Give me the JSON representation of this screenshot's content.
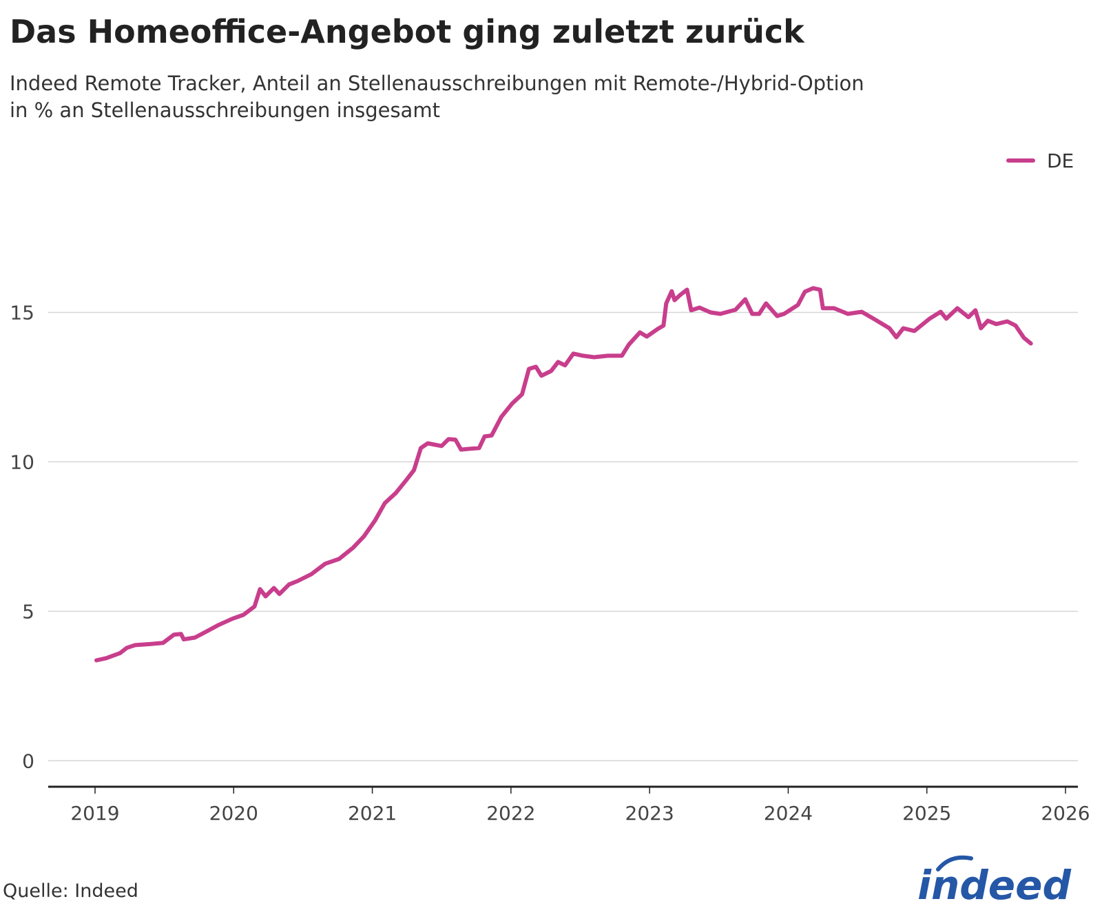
{
  "chart_data": {
    "type": "line",
    "title": "Das Homeoffice-Angebot ging zuletzt zurück",
    "subtitle": [
      "Indeed Remote Tracker, Anteil an Stellenausschreibungen mit Remote-/Hybrid-Option",
      "in % an Stellenausschreibungen insgesamt"
    ],
    "source": "Quelle: Indeed",
    "logo": "indeed",
    "legend": "top-right",
    "grid": true,
    "xlim": [
      2019,
      2026
    ],
    "xticks": [
      2019,
      2020,
      2021,
      2022,
      2023,
      2024,
      2025,
      2026
    ],
    "ylim": [
      -0.87,
      17.5
    ],
    "yticks": [
      0,
      5,
      10,
      15
    ],
    "x": [
      2019.01,
      2019.08,
      2019.18,
      2019.23,
      2019.29,
      2019.39,
      2019.49,
      2019.53,
      2019.57,
      2019.62,
      2019.64,
      2019.72,
      2019.79,
      2019.89,
      2019.99,
      2020.07,
      2020.15,
      2020.19,
      2020.23,
      2020.29,
      2020.33,
      2020.4,
      2020.46,
      2020.56,
      2020.66,
      2020.76,
      2020.86,
      2020.94,
      2021.02,
      2021.09,
      2021.17,
      2021.25,
      2021.3,
      2021.35,
      2021.4,
      2021.5,
      2021.55,
      2021.6,
      2021.64,
      2021.71,
      2021.77,
      2021.81,
      2021.86,
      2021.93,
      2022.01,
      2022.08,
      2022.13,
      2022.18,
      2022.22,
      2022.29,
      2022.34,
      2022.39,
      2022.45,
      2022.52,
      2022.6,
      2022.7,
      2022.8,
      2022.85,
      2022.93,
      2022.98,
      2023.06,
      2023.1,
      2023.12,
      2023.16,
      2023.18,
      2023.22,
      2023.27,
      2023.3,
      2023.36,
      2023.44,
      2023.51,
      2023.62,
      2023.69,
      2023.74,
      2023.79,
      2023.84,
      2023.92,
      2023.97,
      2024.07,
      2024.12,
      2024.18,
      2024.23,
      2024.25,
      2024.33,
      2024.43,
      2024.53,
      2024.63,
      2024.73,
      2024.78,
      2024.83,
      2024.91,
      2025.02,
      2025.1,
      2025.14,
      2025.22,
      2025.3,
      2025.35,
      2025.39,
      2025.44,
      2025.5,
      2025.58,
      2025.64,
      2025.7,
      2025.75
    ],
    "series": [
      {
        "name": "DE",
        "color": "#c83e8c",
        "values": [
          3.36,
          3.43,
          3.6,
          3.78,
          3.87,
          3.9,
          3.94,
          4.08,
          4.22,
          4.24,
          4.06,
          4.12,
          4.29,
          4.54,
          4.75,
          4.88,
          5.16,
          5.74,
          5.5,
          5.78,
          5.58,
          5.9,
          6.01,
          6.24,
          6.59,
          6.75,
          7.12,
          7.51,
          8.04,
          8.62,
          8.96,
          9.42,
          9.72,
          10.46,
          10.62,
          10.53,
          10.76,
          10.74,
          10.41,
          10.44,
          10.46,
          10.85,
          10.88,
          11.5,
          11.96,
          12.26,
          13.11,
          13.18,
          12.88,
          13.04,
          13.34,
          13.23,
          13.62,
          13.55,
          13.5,
          13.55,
          13.55,
          13.92,
          14.33,
          14.19,
          14.45,
          14.56,
          15.3,
          15.71,
          15.41,
          15.58,
          15.76,
          15.07,
          15.16,
          15.0,
          14.95,
          15.09,
          15.44,
          14.95,
          14.95,
          15.3,
          14.88,
          14.95,
          15.25,
          15.69,
          15.81,
          15.76,
          15.14,
          15.14,
          14.95,
          15.02,
          14.75,
          14.47,
          14.17,
          14.47,
          14.38,
          14.79,
          15.02,
          14.79,
          15.14,
          14.84,
          15.07,
          14.47,
          14.72,
          14.61,
          14.7,
          14.56,
          14.15,
          13.96
        ]
      }
    ]
  }
}
